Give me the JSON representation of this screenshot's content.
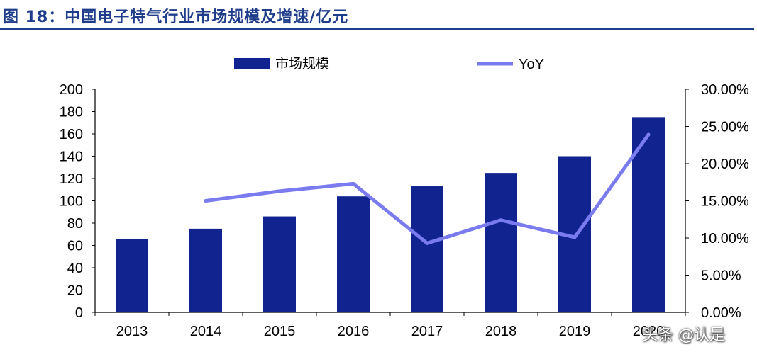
{
  "title": "图 18：中国电子特气行业市场规模及增速/亿元",
  "watermark": "头条 @认是",
  "colors": {
    "bar": "#10238f",
    "line": "#7b7bf0",
    "title": "#1f3d8a"
  },
  "chart_data": {
    "type": "bar",
    "categories": [
      "2013",
      "2014",
      "2015",
      "2016",
      "2017",
      "2018",
      "2019",
      "2020"
    ],
    "series": [
      {
        "name": "市场规模",
        "type": "bar",
        "axis": "left",
        "values": [
          66,
          75,
          86,
          104,
          113,
          125,
          140,
          175
        ]
      },
      {
        "name": "YoY",
        "type": "line",
        "axis": "right",
        "values": [
          null,
          0.15,
          0.163,
          0.173,
          0.093,
          0.124,
          0.101,
          0.239
        ]
      }
    ],
    "y_left": {
      "min": 0,
      "max": 200,
      "ticks": [
        "0",
        "20",
        "40",
        "60",
        "80",
        "100",
        "120",
        "140",
        "160",
        "180",
        "200"
      ]
    },
    "y_right": {
      "min": 0,
      "max": 0.3,
      "ticks": [
        "0.00%",
        "5.00%",
        "10.00%",
        "15.00%",
        "20.00%",
        "25.00%",
        "30.00%"
      ]
    },
    "legend": {
      "position": "top",
      "entries": [
        "市场规模",
        "YoY"
      ]
    },
    "grid": false
  }
}
